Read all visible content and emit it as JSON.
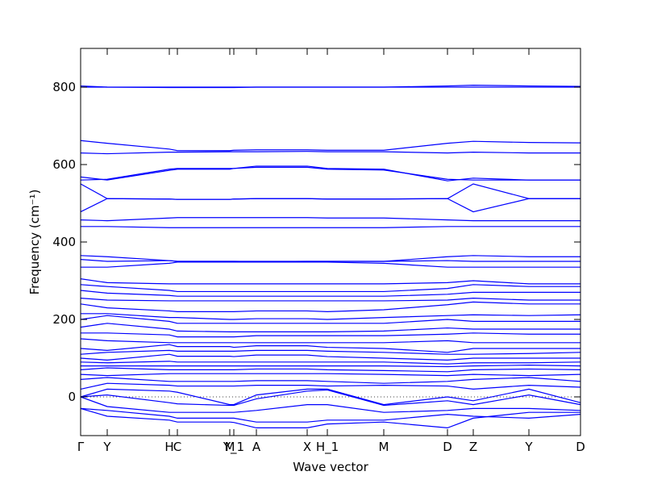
{
  "chart_data": {
    "type": "line",
    "x_label": "Wave vector",
    "y_label": "Frequency (cm⁻¹)",
    "color": "#0000ff",
    "xlim": [
      0,
      620
    ],
    "ylim": [
      -100,
      900
    ],
    "yticks": [
      0,
      200,
      400,
      600,
      800
    ],
    "xticks": [
      {
        "value": 0,
        "label": "Γ"
      },
      {
        "value": 33,
        "label": "Y"
      },
      {
        "value": 110,
        "label": "H"
      },
      {
        "value": 120,
        "label": "C"
      },
      {
        "value": 185,
        "label": "M"
      },
      {
        "value": 190,
        "label": "Y_1"
      },
      {
        "value": 218,
        "label": "A"
      },
      {
        "value": 281,
        "label": "X"
      },
      {
        "value": 306,
        "label": "H_1"
      },
      {
        "value": 376,
        "label": "M"
      },
      {
        "value": 455,
        "label": "D"
      },
      {
        "value": 487,
        "label": "Z"
      },
      {
        "value": 556,
        "label": "Y"
      },
      {
        "value": 620,
        "label": "D"
      }
    ],
    "zero_line": true,
    "x": [
      0,
      33,
      110,
      120,
      185,
      190,
      218,
      281,
      306,
      376,
      455,
      487,
      556,
      620
    ],
    "series": [
      {
        "values": [
          803,
          800,
          799,
          799,
          799,
          799,
          800,
          800,
          800,
          800,
          803,
          805,
          803,
          802
        ]
      },
      {
        "values": [
          800,
          800,
          800,
          800,
          800,
          800,
          800,
          800,
          800,
          800,
          800,
          800,
          800,
          800
        ]
      },
      {
        "values": [
          662,
          655,
          640,
          636,
          636,
          637,
          638,
          638,
          637,
          637,
          655,
          660,
          657,
          656
        ]
      },
      {
        "values": [
          630,
          628,
          632,
          632,
          633,
          633,
          633,
          634,
          633,
          633,
          630,
          632,
          630,
          630
        ]
      },
      {
        "values": [
          568,
          560,
          585,
          588,
          588,
          590,
          596,
          596,
          590,
          588,
          558,
          565,
          560,
          560
        ]
      },
      {
        "values": [
          560,
          562,
          588,
          590,
          590,
          590,
          593,
          593,
          588,
          586,
          562,
          560,
          560,
          560
        ]
      },
      {
        "values": [
          550,
          512,
          511,
          510,
          510,
          511,
          512,
          512,
          511,
          511,
          512,
          550,
          512,
          512
        ]
      },
      {
        "values": [
          478,
          512,
          511,
          510,
          510,
          511,
          512,
          512,
          511,
          511,
          512,
          478,
          512,
          512
        ]
      },
      {
        "values": [
          457,
          455,
          462,
          463,
          463,
          463,
          463,
          463,
          462,
          462,
          457,
          455,
          455,
          455
        ]
      },
      {
        "values": [
          440,
          440,
          437,
          437,
          437,
          437,
          437,
          437,
          437,
          437,
          440,
          440,
          440,
          440
        ]
      },
      {
        "values": [
          365,
          362,
          352,
          350,
          350,
          350,
          350,
          350,
          350,
          350,
          362,
          365,
          362,
          362
        ]
      },
      {
        "values": [
          355,
          350,
          352,
          350,
          350,
          350,
          349,
          350,
          350,
          350,
          352,
          350,
          350,
          350
        ]
      },
      {
        "values": [
          335,
          335,
          345,
          348,
          348,
          348,
          348,
          348,
          348,
          345,
          335,
          335,
          335,
          335
        ]
      },
      {
        "values": [
          305,
          295,
          292,
          292,
          292,
          292,
          292,
          292,
          292,
          292,
          295,
          300,
          292,
          292
        ]
      },
      {
        "values": [
          290,
          285,
          275,
          272,
          272,
          272,
          272,
          272,
          272,
          272,
          280,
          290,
          285,
          285
        ]
      },
      {
        "values": [
          275,
          268,
          262,
          260,
          260,
          260,
          260,
          260,
          260,
          260,
          265,
          270,
          270,
          270
        ]
      },
      {
        "values": [
          255,
          250,
          248,
          248,
          248,
          248,
          248,
          248,
          248,
          248,
          250,
          255,
          250,
          250
        ]
      },
      {
        "values": [
          240,
          230,
          222,
          220,
          220,
          220,
          222,
          222,
          220,
          225,
          238,
          245,
          240,
          240
        ]
      },
      {
        "values": [
          215,
          215,
          205,
          205,
          200,
          200,
          202,
          202,
          200,
          205,
          210,
          212,
          210,
          212
        ]
      },
      {
        "values": [
          200,
          210,
          195,
          190,
          190,
          190,
          190,
          190,
          190,
          190,
          200,
          195,
          195,
          195
        ]
      },
      {
        "values": [
          180,
          190,
          175,
          170,
          168,
          168,
          168,
          168,
          168,
          170,
          178,
          175,
          175,
          175
        ]
      },
      {
        "values": [
          165,
          165,
          160,
          155,
          155,
          155,
          158,
          158,
          158,
          158,
          162,
          165,
          162,
          162
        ]
      },
      {
        "values": [
          150,
          145,
          140,
          140,
          140,
          140,
          140,
          140,
          140,
          140,
          145,
          140,
          140,
          140
        ]
      },
      {
        "values": [
          125,
          120,
          135,
          130,
          130,
          128,
          132,
          132,
          128,
          125,
          115,
          125,
          125,
          125
        ]
      },
      {
        "values": [
          110,
          115,
          120,
          118,
          118,
          118,
          120,
          120,
          118,
          115,
          110,
          110,
          112,
          115
        ]
      },
      {
        "values": [
          100,
          95,
          110,
          105,
          105,
          104,
          108,
          108,
          104,
          100,
          95,
          100,
          100,
          100
        ]
      },
      {
        "values": [
          90,
          88,
          92,
          90,
          90,
          90,
          90,
          90,
          90,
          90,
          85,
          88,
          88,
          90
        ]
      },
      {
        "values": [
          80,
          80,
          80,
          80,
          80,
          80,
          80,
          80,
          80,
          80,
          78,
          80,
          82,
          80
        ]
      },
      {
        "values": [
          70,
          75,
          70,
          70,
          70,
          70,
          72,
          72,
          70,
          68,
          65,
          70,
          72,
          70
        ]
      },
      {
        "values": [
          58,
          55,
          60,
          60,
          60,
          60,
          60,
          60,
          60,
          58,
          55,
          58,
          55,
          58
        ]
      },
      {
        "values": [
          45,
          50,
          40,
          40,
          40,
          40,
          42,
          42,
          40,
          35,
          40,
          45,
          50,
          40
        ]
      },
      {
        "values": [
          20,
          35,
          30,
          28,
          28,
          28,
          30,
          30,
          28,
          30,
          28,
          20,
          30,
          25
        ]
      },
      {
        "values": [
          0,
          20,
          15,
          12,
          -20,
          -20,
          5,
          20,
          20,
          -20,
          0,
          -10,
          20,
          -15
        ]
      },
      {
        "values": [
          0,
          5,
          -15,
          -18,
          -22,
          -22,
          -5,
          15,
          18,
          -22,
          -10,
          -20,
          5,
          -20
        ]
      },
      {
        "values": [
          0,
          -25,
          -40,
          -40,
          -40,
          -40,
          -35,
          -20,
          -20,
          -40,
          -35,
          -30,
          -30,
          -35
        ]
      },
      {
        "values": [
          -30,
          -35,
          -50,
          -55,
          -55,
          -55,
          -65,
          -65,
          -60,
          -60,
          -45,
          -50,
          -55,
          -45
        ]
      },
      {
        "values": [
          -30,
          -50,
          -60,
          -65,
          -65,
          -66,
          -80,
          -80,
          -70,
          -65,
          -80,
          -55,
          -40,
          -40
        ]
      }
    ]
  }
}
